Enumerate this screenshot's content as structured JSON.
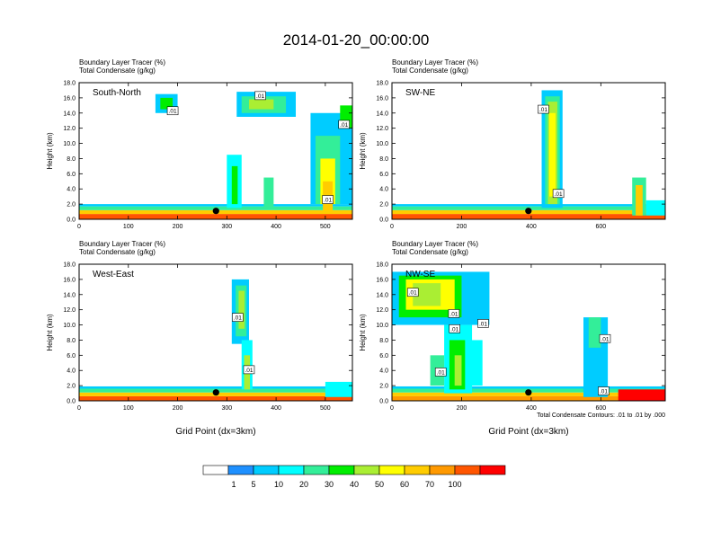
{
  "title": "2014-01-20_00:00:00",
  "contour_note": "Total Condensate Contours: .01 to .01 by .000",
  "colorbar": {
    "colors": [
      "#ffffff",
      "#1e90ff",
      "#00ccff",
      "#00ffff",
      "#33ee99",
      "#00ee00",
      "#aaee33",
      "#ffff00",
      "#ffcc00",
      "#ff9900",
      "#ff5500",
      "#ff0000"
    ],
    "labels": [
      "1",
      "5",
      "10",
      "20",
      "30",
      "40",
      "50",
      "60",
      "70",
      "100"
    ]
  },
  "chart_data": [
    {
      "type": "heatmap",
      "panel": "top-left",
      "subtitle_line1": "Boundary Layer Tracer   (%)",
      "subtitle_line2": "Total Condensate   (g/kg)",
      "label": "South-North",
      "ylabel": "Height (km)",
      "xlabel": "",
      "xlim": [
        0,
        555
      ],
      "ylim": [
        0,
        18
      ],
      "xticks": [
        "0",
        "100",
        "200",
        "300",
        "400",
        "500"
      ],
      "xtick_values": [
        0,
        100,
        200,
        300,
        400,
        500
      ],
      "yticks": [
        "0.0",
        "2.0",
        "4.0",
        "6.0",
        "8.0",
        "10.0",
        "12.0",
        "14.0",
        "16.0",
        "18.0"
      ],
      "marker_x": 278,
      "contour_labels": [
        {
          "text": ".01",
          "x": 190,
          "y": 14.3
        },
        {
          "text": ".01",
          "x": 368,
          "y": 16.3
        },
        {
          "text": ".01",
          "x": 538,
          "y": 12.5
        },
        {
          "text": ".01",
          "x": 505,
          "y": 2.6
        }
      ],
      "cells": [
        {
          "x": [
            0,
            555
          ],
          "y": [
            0,
            0.7
          ],
          "c": 10
        },
        {
          "x": [
            0,
            555
          ],
          "y": [
            0.7,
            1.2
          ],
          "c": 8
        },
        {
          "x": [
            0,
            555
          ],
          "y": [
            1.2,
            1.7
          ],
          "c": 4
        },
        {
          "x": [
            0,
            555
          ],
          "y": [
            1.7,
            2.0
          ],
          "c": 2
        },
        {
          "x": [
            155,
            200
          ],
          "y": [
            14.0,
            16.5
          ],
          "c": 2
        },
        {
          "x": [
            165,
            190
          ],
          "y": [
            14.5,
            16.0
          ],
          "c": 5
        },
        {
          "x": [
            320,
            440
          ],
          "y": [
            13.5,
            16.8
          ],
          "c": 2
        },
        {
          "x": [
            330,
            420
          ],
          "y": [
            14.0,
            16.2
          ],
          "c": 4
        },
        {
          "x": [
            345,
            395
          ],
          "y": [
            14.5,
            15.8
          ],
          "c": 6
        },
        {
          "x": [
            300,
            330
          ],
          "y": [
            1.5,
            8.5
          ],
          "c": 3
        },
        {
          "x": [
            310,
            322
          ],
          "y": [
            2,
            7
          ],
          "c": 5
        },
        {
          "x": [
            375,
            395
          ],
          "y": [
            1.5,
            5.5
          ],
          "c": 4
        },
        {
          "x": [
            470,
            555
          ],
          "y": [
            2,
            14
          ],
          "c": 2
        },
        {
          "x": [
            480,
            530
          ],
          "y": [
            2,
            11
          ],
          "c": 4
        },
        {
          "x": [
            490,
            520
          ],
          "y": [
            2,
            8
          ],
          "c": 7
        },
        {
          "x": [
            495,
            515
          ],
          "y": [
            1,
            5
          ],
          "c": 8
        },
        {
          "x": [
            530,
            555
          ],
          "y": [
            12,
            15
          ],
          "c": 5
        }
      ]
    },
    {
      "type": "heatmap",
      "panel": "top-right",
      "subtitle_line1": "Boundary Layer Tracer   (%)",
      "subtitle_line2": "Total Condensate   (g/kg)",
      "label": "SW-NE",
      "ylabel": "Height (km)",
      "xlabel": "",
      "xlim": [
        0,
        785
      ],
      "ylim": [
        0,
        18
      ],
      "xticks": [
        "0",
        "200",
        "400",
        "600"
      ],
      "xtick_values": [
        0,
        200,
        400,
        600
      ],
      "yticks": [
        "0.0",
        "2.0",
        "4.0",
        "6.0",
        "8.0",
        "10.0",
        "12.0",
        "14.0",
        "16.0",
        "18.0"
      ],
      "marker_x": 392,
      "contour_labels": [
        {
          "text": ".01",
          "x": 435,
          "y": 14.5
        },
        {
          "text": ".01",
          "x": 478,
          "y": 3.4
        }
      ],
      "cells": [
        {
          "x": [
            0,
            785
          ],
          "y": [
            0,
            0.7
          ],
          "c": 10
        },
        {
          "x": [
            0,
            785
          ],
          "y": [
            0.7,
            1.2
          ],
          "c": 8
        },
        {
          "x": [
            0,
            785
          ],
          "y": [
            1.2,
            1.7
          ],
          "c": 4
        },
        {
          "x": [
            0,
            785
          ],
          "y": [
            1.7,
            2.0
          ],
          "c": 2
        },
        {
          "x": [
            430,
            490
          ],
          "y": [
            1.5,
            17
          ],
          "c": 2
        },
        {
          "x": [
            440,
            482
          ],
          "y": [
            2,
            16.2
          ],
          "c": 4
        },
        {
          "x": [
            448,
            475
          ],
          "y": [
            2,
            15.5
          ],
          "c": 6
        },
        {
          "x": [
            452,
            470
          ],
          "y": [
            3,
            14
          ],
          "c": 7
        },
        {
          "x": [
            690,
            730
          ],
          "y": [
            0.5,
            5.5
          ],
          "c": 4
        },
        {
          "x": [
            700,
            720
          ],
          "y": [
            0.5,
            4.5
          ],
          "c": 8
        },
        {
          "x": [
            730,
            785
          ],
          "y": [
            0.5,
            2.5
          ],
          "c": 3
        }
      ]
    },
    {
      "type": "heatmap",
      "panel": "bottom-left",
      "subtitle_line1": "Boundary Layer Tracer   (%)",
      "subtitle_line2": "Total Condensate   (g/kg)",
      "label": "West-East",
      "ylabel": "Height (km)",
      "xlabel": "Grid Point (dx=3km)",
      "xlim": [
        0,
        555
      ],
      "ylim": [
        0,
        18
      ],
      "xticks": [
        "0",
        "100",
        "200",
        "300",
        "400",
        "500"
      ],
      "xtick_values": [
        0,
        100,
        200,
        300,
        400,
        500
      ],
      "yticks": [
        "0.0",
        "2.0",
        "4.0",
        "6.0",
        "8.0",
        "10.0",
        "12.0",
        "14.0",
        "16.0",
        "18.0"
      ],
      "marker_x": 278,
      "contour_labels": [
        {
          "text": ".01",
          "x": 322,
          "y": 11.0
        },
        {
          "text": ".01",
          "x": 345,
          "y": 4.1
        }
      ],
      "cells": [
        {
          "x": [
            0,
            555
          ],
          "y": [
            0,
            0.6
          ],
          "c": 10
        },
        {
          "x": [
            0,
            555
          ],
          "y": [
            0.6,
            1.1
          ],
          "c": 8
        },
        {
          "x": [
            0,
            555
          ],
          "y": [
            1.1,
            1.6
          ],
          "c": 4
        },
        {
          "x": [
            0,
            555
          ],
          "y": [
            1.6,
            1.9
          ],
          "c": 2
        },
        {
          "x": [
            310,
            345
          ],
          "y": [
            7.5,
            16
          ],
          "c": 2
        },
        {
          "x": [
            318,
            340
          ],
          "y": [
            8.5,
            15.2
          ],
          "c": 4
        },
        {
          "x": [
            324,
            336
          ],
          "y": [
            9.5,
            14.5
          ],
          "c": 6
        },
        {
          "x": [
            330,
            352
          ],
          "y": [
            1.5,
            8
          ],
          "c": 3
        },
        {
          "x": [
            335,
            347
          ],
          "y": [
            1.5,
            6
          ],
          "c": 6
        },
        {
          "x": [
            500,
            555
          ],
          "y": [
            0.5,
            2.5
          ],
          "c": 3
        }
      ]
    },
    {
      "type": "heatmap",
      "panel": "bottom-right",
      "subtitle_line1": "Boundary Layer Tracer   (%)",
      "subtitle_line2": "Total Condensate   (g/kg)",
      "label": "NW-SE",
      "ylabel": "Height (km)",
      "xlabel": "Grid Point (dx=3km)",
      "xlim": [
        0,
        785
      ],
      "ylim": [
        0,
        18
      ],
      "xticks": [
        "0",
        "200",
        "400",
        "600"
      ],
      "xtick_values": [
        0,
        200,
        400,
        600
      ],
      "yticks": [
        "0.0",
        "2.0",
        "4.0",
        "6.0",
        "8.0",
        "10.0",
        "12.0",
        "14.0",
        "16.0",
        "18.0"
      ],
      "marker_x": 392,
      "contour_labels": [
        {
          "text": ".01",
          "x": 60,
          "y": 14.3
        },
        {
          "text": ".01",
          "x": 178,
          "y": 11.5
        },
        {
          "text": ".01",
          "x": 180,
          "y": 9.5
        },
        {
          "text": ".01",
          "x": 262,
          "y": 10.2
        },
        {
          "text": ".01",
          "x": 140,
          "y": 3.8
        },
        {
          "text": ".01",
          "x": 612,
          "y": 8.2
        },
        {
          "text": ".01",
          "x": 608,
          "y": 1.3
        }
      ],
      "cells": [
        {
          "x": [
            0,
            785
          ],
          "y": [
            0,
            0.6
          ],
          "c": 9
        },
        {
          "x": [
            0,
            785
          ],
          "y": [
            0.6,
            1.1
          ],
          "c": 8
        },
        {
          "x": [
            0,
            785
          ],
          "y": [
            1.1,
            1.6
          ],
          "c": 4
        },
        {
          "x": [
            0,
            785
          ],
          "y": [
            1.6,
            1.9
          ],
          "c": 2
        },
        {
          "x": [
            0,
            280
          ],
          "y": [
            10,
            17
          ],
          "c": 2
        },
        {
          "x": [
            20,
            200
          ],
          "y": [
            11,
            16.5
          ],
          "c": 5
        },
        {
          "x": [
            40,
            180
          ],
          "y": [
            12,
            16
          ],
          "c": 7
        },
        {
          "x": [
            60,
            140
          ],
          "y": [
            12.5,
            15.5
          ],
          "c": 6
        },
        {
          "x": [
            150,
            230
          ],
          "y": [
            1,
            10
          ],
          "c": 3
        },
        {
          "x": [
            165,
            210
          ],
          "y": [
            1.5,
            8
          ],
          "c": 5
        },
        {
          "x": [
            180,
            200
          ],
          "y": [
            2,
            6
          ],
          "c": 6
        },
        {
          "x": [
            110,
            150
          ],
          "y": [
            2,
            6
          ],
          "c": 4
        },
        {
          "x": [
            220,
            260
          ],
          "y": [
            2,
            8
          ],
          "c": 3
        },
        {
          "x": [
            550,
            620
          ],
          "y": [
            0.5,
            11
          ],
          "c": 2
        },
        {
          "x": [
            565,
            600
          ],
          "y": [
            7,
            11
          ],
          "c": 4
        },
        {
          "x": [
            650,
            785
          ],
          "y": [
            0,
            1.5
          ],
          "c": 11
        }
      ]
    }
  ]
}
